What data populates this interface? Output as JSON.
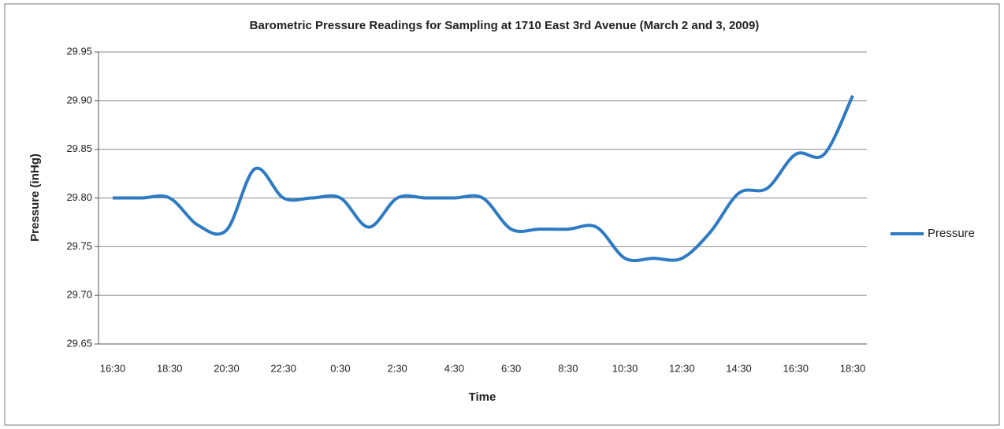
{
  "chart_data": {
    "type": "line",
    "title": "Barometric Pressure Readings for Sampling at 1710 East 3rd Avenue (March 2 and 3, 2009)",
    "x_label": "Time",
    "y_label": "Pressure (inHg)",
    "categories": [
      "16:30",
      null,
      "18:30",
      null,
      "20:30",
      null,
      "22:30",
      null,
      "0:30",
      null,
      "2:30",
      null,
      "4:30",
      null,
      "6:30",
      null,
      "8:30",
      null,
      "10:30",
      null,
      "12:30",
      null,
      "14:30",
      null,
      "16:30",
      null,
      "18:30"
    ],
    "series": [
      {
        "name": "Pressure",
        "color": "#2e7bc4",
        "values": [
          29.8,
          29.8,
          29.8,
          29.772,
          29.767,
          29.83,
          29.8,
          29.8,
          29.8,
          29.77,
          29.8,
          29.8,
          29.8,
          29.8,
          29.768,
          29.768,
          29.768,
          29.77,
          29.738,
          29.738,
          29.738,
          29.765,
          29.805,
          29.81,
          29.845,
          29.845,
          29.905
        ]
      }
    ],
    "ylim": [
      29.65,
      29.95
    ],
    "yticks": [
      29.65,
      {
        "value": 29.7,
        "label": "29.70"
      },
      29.75,
      {
        "value": 29.8,
        "label": "29.80"
      },
      29.85,
      {
        "value": 29.9,
        "label": "29.90"
      },
      29.95
    ],
    "grid": true,
    "legend": "right",
    "smooth": true
  }
}
